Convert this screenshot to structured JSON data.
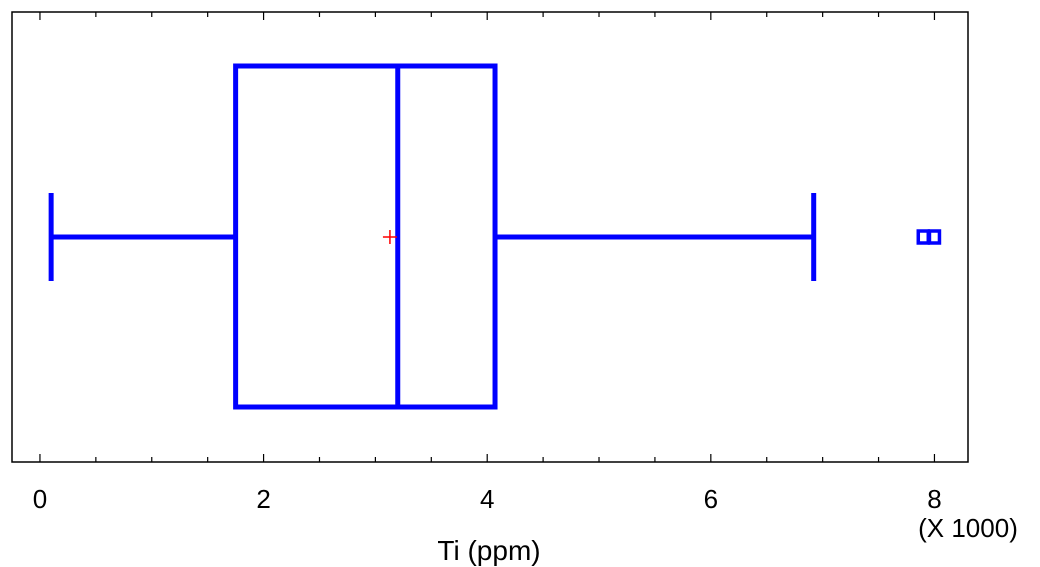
{
  "chart_data": {
    "type": "box",
    "orientation": "horizontal",
    "xlabel": "Ti (ppm)",
    "scale_label": "(X 1000)",
    "xlim": [
      -0.25,
      8.3
    ],
    "x_ticks": [
      0,
      2,
      4,
      6,
      8
    ],
    "x_minor_step": 0.5,
    "grid": false,
    "box": {
      "whisker_low": 0.1,
      "q1": 1.75,
      "median": 3.2,
      "q3": 4.07,
      "whisker_high": 6.92,
      "mean": 3.13,
      "outliers": [
        7.9,
        8.0
      ]
    },
    "colors": {
      "box": "#0000ff",
      "mean_marker": "#ff0000",
      "axis": "#000000"
    }
  }
}
